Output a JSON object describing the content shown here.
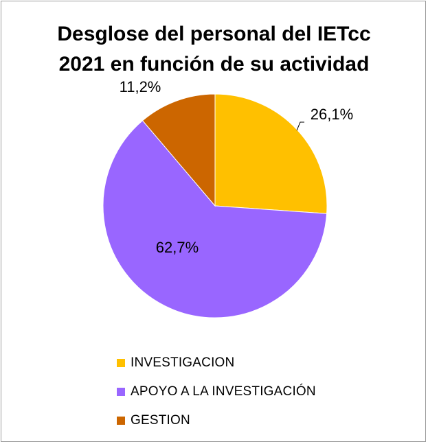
{
  "chart_data": {
    "type": "pie",
    "title": "Desglose del personal del IETcc 2021 en función de su actividad",
    "title_lines": [
      "Desglose del personal del IETcc",
      "2021 en función de su actividad"
    ],
    "slices": [
      {
        "name": "INVESTIGACION",
        "value": 26.1,
        "label": "26,1%",
        "color": "#FFC000"
      },
      {
        "name": "APOYO A LA INVESTIGACIÓN",
        "value": 62.7,
        "label": "62,7%",
        "color": "#9966FF"
      },
      {
        "name": "GESTION",
        "value": 11.2,
        "label": "11,2%",
        "color": "#CC6600"
      }
    ],
    "start_angle_deg": 0,
    "direction": "clockwise",
    "legend_position": "bottom"
  }
}
